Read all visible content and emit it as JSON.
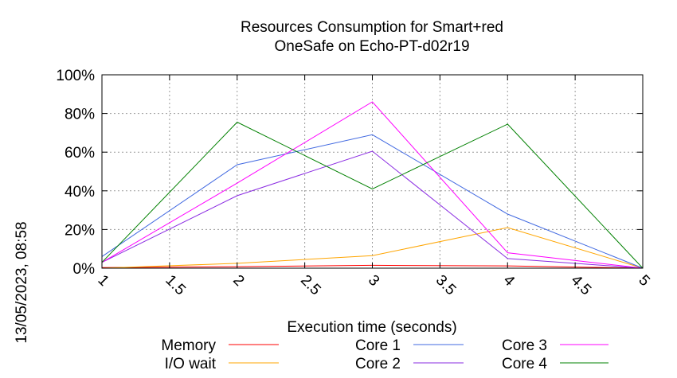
{
  "chart_data": {
    "type": "line",
    "title_lines": [
      "Resources Consumption for Smart+red",
      "OneSafe on Echo-PT-d02r19"
    ],
    "xlabel": "Execution time (seconds)",
    "ylabel": "",
    "side_label": "13/05/2023, 08:58",
    "xlim": [
      1,
      5
    ],
    "ylim": [
      0,
      100
    ],
    "x_ticks": [
      "1",
      "1.5",
      "2",
      "2.5",
      "3",
      "3.5",
      "4",
      "4.5",
      "5"
    ],
    "y_ticks": [
      "0%",
      "20%",
      "40%",
      "60%",
      "80%",
      "100%"
    ],
    "grid": true,
    "legend_position": "bottom",
    "x": [
      1,
      2,
      3,
      4,
      5
    ],
    "series": [
      {
        "name": "Memory",
        "color": "#ff0000",
        "values": [
          0.3,
          0.8,
          1.5,
          1.2,
          0
        ]
      },
      {
        "name": "I/O wait",
        "color": "#ffa500",
        "values": [
          0,
          2.5,
          6.5,
          21,
          0
        ]
      },
      {
        "name": "Core 1",
        "color": "#4169e1",
        "values": [
          6,
          53.5,
          69,
          28,
          0
        ]
      },
      {
        "name": "Core 2",
        "color": "#8a2be2",
        "values": [
          3,
          37.5,
          60.5,
          5,
          0
        ]
      },
      {
        "name": "Core 3",
        "color": "#ff00ff",
        "values": [
          3,
          44,
          86,
          8,
          0
        ]
      },
      {
        "name": "Core 4",
        "color": "#008000",
        "values": [
          3,
          75.5,
          41,
          74.5,
          0
        ]
      }
    ]
  }
}
